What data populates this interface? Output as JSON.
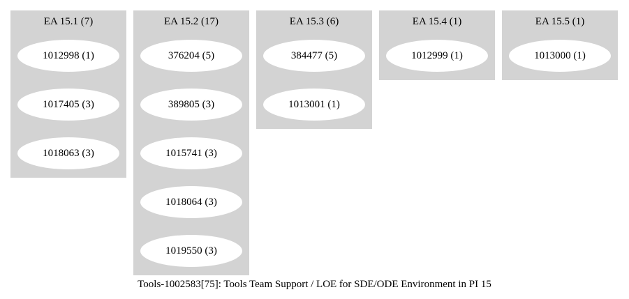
{
  "clusters": [
    {
      "title": "EA 15.1 (7)",
      "nodes": [
        "1012998 (1)",
        "1017405 (3)",
        "1018063 (3)"
      ]
    },
    {
      "title": "EA 15.2 (17)",
      "nodes": [
        "376204 (5)",
        "389805 (3)",
        "1015741 (3)",
        "1018064 (3)",
        "1019550 (3)"
      ]
    },
    {
      "title": "EA 15.3 (6)",
      "nodes": [
        "384477 (5)",
        "1013001 (1)"
      ]
    },
    {
      "title": "EA 15.4 (1)",
      "nodes": [
        "1012999 (1)"
      ]
    },
    {
      "title": "EA 15.5 (1)",
      "nodes": [
        "1013000 (1)"
      ]
    }
  ],
  "caption": "Tools-1002583[75]: Tools Team Support / LOE for SDE/ODE Environment in PI 15",
  "colors": {
    "cluster_fill": "#d3d3d3",
    "node_fill": "#ffffff",
    "text": "#000000"
  }
}
